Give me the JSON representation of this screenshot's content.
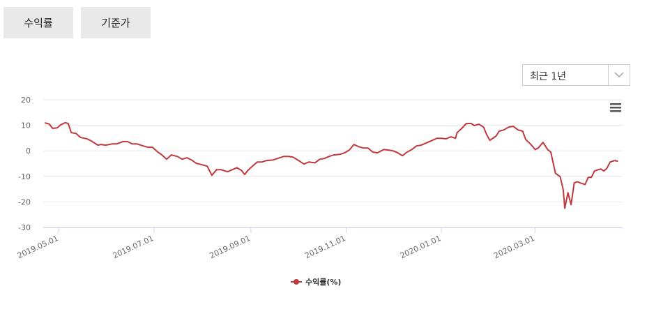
{
  "tabs": [
    "수익률",
    "기준가"
  ],
  "period_select": "최근 1년",
  "chart_data": {
    "type": "line",
    "xlim": [
      "2019.04.21",
      "2020.04.26"
    ],
    "xticks": [
      "2019.05.01",
      "2019.07.01",
      "2019.09.01",
      "2019.11.01",
      "2020.01.01",
      "2020.03.01"
    ],
    "ylim": [
      -30,
      20
    ],
    "yticks": [
      -30,
      -20,
      -10,
      0,
      10,
      20
    ],
    "grid": true,
    "legend": "bottom",
    "x": [
      "2019.04.22",
      "2019.04.25",
      "2019.04.27",
      "2019.04.30",
      "2019.05.02",
      "2019.05.05",
      "2019.05.07",
      "2019.05.09",
      "2019.05.12",
      "2019.05.15",
      "2019.05.19",
      "2019.05.22",
      "2019.05.26",
      "2019.05.28",
      "2019.05.31",
      "2019.06.04",
      "2019.06.07",
      "2019.06.11",
      "2019.06.14",
      "2019.06.17",
      "2019.06.20",
      "2019.06.24",
      "2019.06.27",
      "2019.06.30",
      "2019.07.03",
      "2019.07.06",
      "2019.07.09",
      "2019.07.12",
      "2019.07.16",
      "2019.07.19",
      "2019.07.22",
      "2019.07.25",
      "2019.07.28",
      "2019.08.01",
      "2019.08.04",
      "2019.08.07",
      "2019.08.10",
      "2019.08.13",
      "2019.08.17",
      "2019.08.20",
      "2019.08.23",
      "2019.08.26",
      "2019.08.28",
      "2019.08.30",
      "2019.09.02",
      "2019.09.05",
      "2019.09.08",
      "2019.09.11",
      "2019.09.15",
      "2019.09.18",
      "2019.09.22",
      "2019.09.25",
      "2019.09.28",
      "2019.10.01",
      "2019.10.05",
      "2019.10.08",
      "2019.10.12",
      "2019.10.15",
      "2019.10.18",
      "2019.10.21",
      "2019.10.24",
      "2019.10.28",
      "2019.10.31",
      "2019.11.03",
      "2019.11.06",
      "2019.11.09",
      "2019.11.12",
      "2019.11.15",
      "2019.11.18",
      "2019.11.21",
      "2019.11.25",
      "2019.11.28",
      "2019.12.01",
      "2019.12.04",
      "2019.12.07",
      "2019.12.10",
      "2019.12.13",
      "2019.12.16",
      "2019.12.19",
      "2019.12.22",
      "2019.12.25",
      "2019.12.29",
      "2020.01.01",
      "2020.01.04",
      "2020.01.07",
      "2020.01.10",
      "2020.01.11",
      "2020.01.14",
      "2020.01.17",
      "2020.01.20",
      "2020.01.22",
      "2020.01.25",
      "2020.01.28",
      "2020.01.30",
      "2020.02.01",
      "2020.02.05",
      "2020.02.07",
      "2020.02.10",
      "2020.02.13",
      "2020.02.16",
      "2020.02.19",
      "2020.02.22",
      "2020.02.24",
      "2020.02.27",
      "2020.03.01",
      "2020.03.03",
      "2020.03.06",
      "2020.03.09",
      "2020.03.11",
      "2020.03.14",
      "2020.03.17",
      "2020.03.19",
      "2020.03.20",
      "2020.03.22",
      "2020.03.24",
      "2020.03.26",
      "2020.03.28",
      "2020.03.30",
      "2020.04.02",
      "2020.04.04",
      "2020.04.06",
      "2020.04.08",
      "2020.04.12",
      "2020.04.14",
      "2020.04.16",
      "2020.04.18",
      "2020.04.21",
      "2020.04.23"
    ],
    "series": [
      {
        "name": "수익률(%)",
        "color": "#c0383c",
        "values": [
          11.0,
          10.4,
          8.8,
          9.0,
          10.1,
          11.0,
          10.7,
          7.1,
          6.8,
          5.2,
          4.7,
          3.8,
          2.2,
          2.5,
          2.2,
          2.7,
          2.7,
          3.6,
          3.6,
          2.7,
          2.7,
          1.9,
          1.4,
          1.4,
          -0.3,
          -1.6,
          -3.3,
          -1.6,
          -2.2,
          -3.3,
          -2.7,
          -3.6,
          -4.9,
          -5.5,
          -6.0,
          -9.6,
          -7.4,
          -7.4,
          -8.2,
          -7.4,
          -6.6,
          -7.7,
          -9.3,
          -7.7,
          -6.0,
          -4.4,
          -4.4,
          -3.8,
          -3.6,
          -3.0,
          -2.2,
          -2.2,
          -2.5,
          -3.6,
          -5.2,
          -4.4,
          -4.7,
          -3.3,
          -3.0,
          -2.2,
          -1.6,
          -1.4,
          -0.8,
          0.3,
          2.5,
          1.6,
          1.1,
          1.1,
          -0.5,
          -0.8,
          0.5,
          0.3,
          0,
          -0.8,
          -1.9,
          -0.5,
          0.5,
          1.9,
          2.2,
          3.0,
          3.8,
          4.9,
          4.9,
          4.7,
          5.5,
          4.9,
          7.1,
          8.8,
          10.7,
          10.7,
          9.9,
          10.4,
          9.3,
          6.3,
          4.1,
          5.8,
          7.7,
          8.2,
          9.3,
          9.6,
          8.2,
          7.7,
          4.4,
          2.7,
          0.5,
          1.1,
          3.3,
          0.5,
          -0.5,
          -8.8,
          -10.1,
          -15.3,
          -22.5,
          -16.4,
          -21.1,
          -12.6,
          -12.1,
          -12.6,
          -13.2,
          -10.4,
          -10.4,
          -7.9,
          -7.1,
          -7.9,
          -6.8,
          -4.4,
          -3.8,
          -4.1
        ]
      }
    ]
  }
}
